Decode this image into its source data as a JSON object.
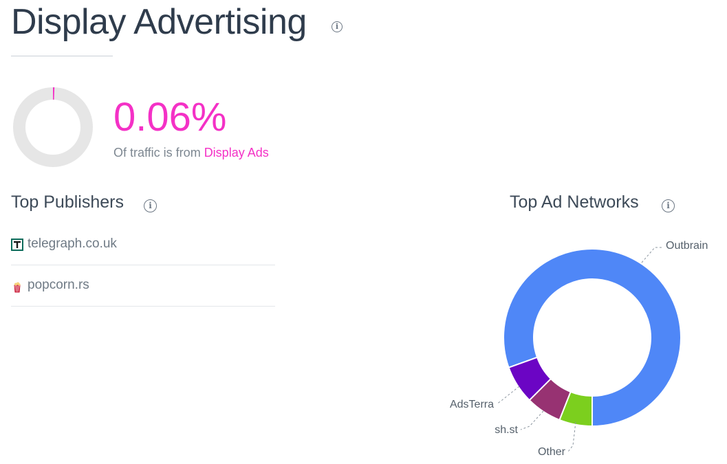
{
  "header": {
    "title": "Display Advertising",
    "info_icon": "info-icon"
  },
  "traffic_share": {
    "value": "0.06%",
    "fraction": 0.0006,
    "caption_prefix": "Of traffic is from ",
    "caption_link": "Display Ads",
    "accent_color": "#f431c6",
    "track_color": "#e6e6e6"
  },
  "top_publishers": {
    "title": "Top Publishers",
    "items": [
      {
        "name": "telegraph.co.uk",
        "icon": "telegraph-favicon-icon"
      },
      {
        "name": "popcorn.rs",
        "icon": "popcorn-favicon-icon"
      }
    ]
  },
  "top_ad_networks": {
    "title": "Top Ad Networks"
  },
  "chart_data": {
    "type": "pie",
    "title": "Top Ad Networks",
    "donut": true,
    "slices": [
      {
        "name": "Outbrain",
        "value": 80.5,
        "color": "#4f87f7"
      },
      {
        "name": "AdsTerra",
        "value": 7.0,
        "color": "#6b05c4"
      },
      {
        "name": "sh.st",
        "value": 6.5,
        "color": "#973272"
      },
      {
        "name": "Other",
        "value": 6.0,
        "color": "#7ccf1e"
      }
    ],
    "label_color_other": "#4d9fd6"
  }
}
